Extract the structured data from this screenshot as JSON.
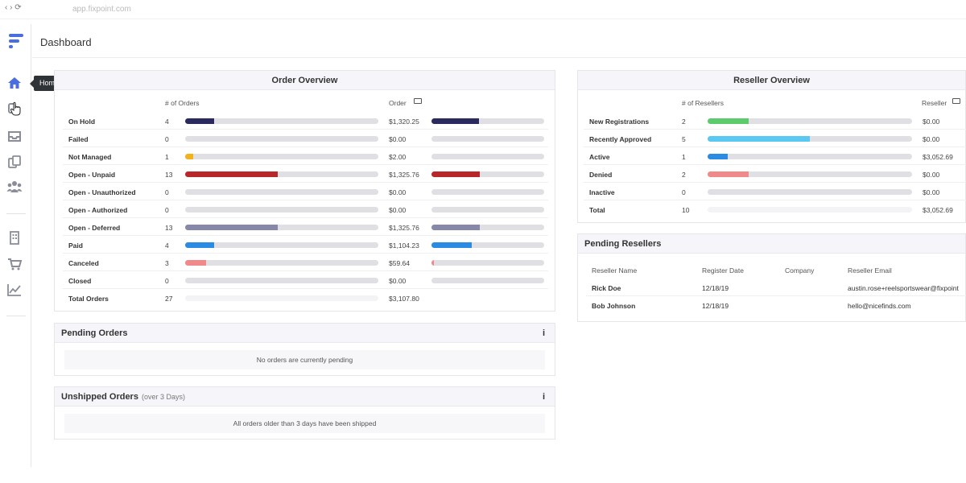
{
  "browser": {
    "nav": "‹ › ⟳",
    "url": "app.fixpoint.com"
  },
  "header": {
    "title": "Dashboard"
  },
  "sidebar": {
    "tooltip": "Home",
    "icons": [
      "home-icon",
      "users-grab-icon",
      "inbox-icon",
      "documents-icon",
      "groups-icon",
      "building-icon",
      "cart-icon",
      "chart-icon"
    ]
  },
  "order_overview": {
    "title": "Order Overview",
    "col_count": "# of Orders",
    "col_order": "Order",
    "rows": [
      {
        "label": "On Hold",
        "count": "4",
        "amount": "$1,320.25",
        "count_frac": 0.15,
        "amount_frac": 0.42,
        "color": "#2b2a5e"
      },
      {
        "label": "Failed",
        "count": "0",
        "amount": "$0.00",
        "count_frac": 0,
        "amount_frac": 0,
        "color": "#2b2a5e"
      },
      {
        "label": "Not Managed",
        "count": "1",
        "amount": "$2.00",
        "count_frac": 0.04,
        "amount_frac": 0,
        "color": "#f2b21b"
      },
      {
        "label": "Open - Unpaid",
        "count": "13",
        "amount": "$1,325.76",
        "count_frac": 0.48,
        "amount_frac": 0.43,
        "color": "#b8272a"
      },
      {
        "label": "Open - Unauthorized",
        "count": "0",
        "amount": "$0.00",
        "count_frac": 0,
        "amount_frac": 0,
        "color": "#888"
      },
      {
        "label": "Open - Authorized",
        "count": "0",
        "amount": "$0.00",
        "count_frac": 0,
        "amount_frac": 0,
        "color": "#888"
      },
      {
        "label": "Open - Deferred",
        "count": "13",
        "amount": "$1,325.76",
        "count_frac": 0.48,
        "amount_frac": 0.43,
        "color": "#8787a8"
      },
      {
        "label": "Paid",
        "count": "4",
        "amount": "$1,104.23",
        "count_frac": 0.15,
        "amount_frac": 0.36,
        "color": "#2b8be3"
      },
      {
        "label": "Canceled",
        "count": "3",
        "amount": "$59.64",
        "count_frac": 0.11,
        "amount_frac": 0.02,
        "color": "#f08a8a"
      },
      {
        "label": "Closed",
        "count": "0",
        "amount": "$0.00",
        "count_frac": 0,
        "amount_frac": 0,
        "color": "#888"
      }
    ],
    "total": {
      "label": "Total Orders",
      "count": "27",
      "amount": "$3,107.80"
    }
  },
  "pending_orders": {
    "title": "Pending Orders",
    "empty": "No orders are currently pending",
    "info": "i"
  },
  "unshipped_orders": {
    "title": "Unshipped Orders",
    "subtitle": "(over 3 Days)",
    "empty": "All orders older than 3 days have been shipped",
    "info": "i"
  },
  "reseller_overview": {
    "title": "Reseller Overview",
    "col_count": "# of Resellers",
    "col_reseller": "Reseller",
    "rows": [
      {
        "label": "New Registrations",
        "count": "2",
        "amount": "$0.00",
        "count_frac": 0.2,
        "color": "#5ccb6e"
      },
      {
        "label": "Recently Approved",
        "count": "5",
        "amount": "$0.00",
        "count_frac": 0.5,
        "color": "#5bc8f2"
      },
      {
        "label": "Active",
        "count": "1",
        "amount": "$3,052.69",
        "count_frac": 0.1,
        "color": "#2b8be3"
      },
      {
        "label": "Denied",
        "count": "2",
        "amount": "$0.00",
        "count_frac": 0.2,
        "color": "#f08a8a"
      },
      {
        "label": "Inactive",
        "count": "0",
        "amount": "$0.00",
        "count_frac": 0,
        "color": "#888"
      }
    ],
    "total": {
      "label": "Total",
      "count": "10",
      "amount": "$3,052.69"
    }
  },
  "pending_resellers": {
    "title": "Pending Resellers",
    "columns": [
      "Reseller Name",
      "Register Date",
      "Company",
      "Reseller Email"
    ],
    "rows": [
      {
        "name": "Rick Doe",
        "date": "12/18/19",
        "company": "",
        "email": "austin.rose+reelsportswear@fixpoint"
      },
      {
        "name": "Bob Johnson",
        "date": "12/18/19",
        "company": "",
        "email": "hello@nicefinds.com"
      }
    ]
  }
}
